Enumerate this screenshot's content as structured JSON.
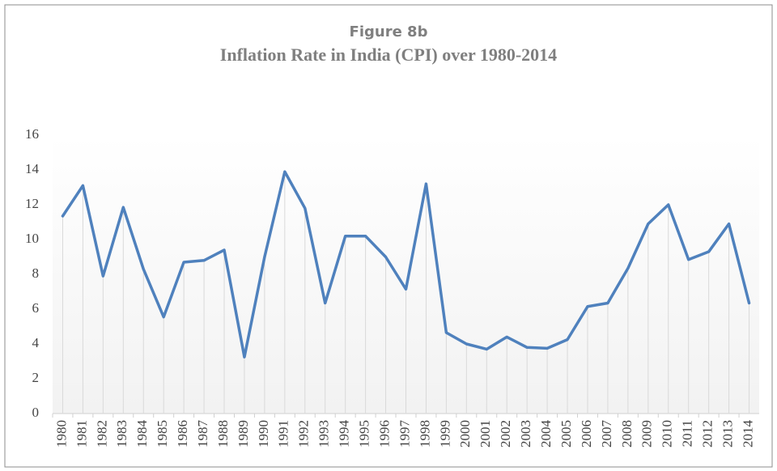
{
  "chart_data": {
    "type": "line",
    "title": "Figure 8b",
    "subtitle": "Inflation Rate in India (CPI) over 1980-2014",
    "categories": [
      "1980",
      "1981",
      "1982",
      "1983",
      "1984",
      "1985",
      "1986",
      "1987",
      "1988",
      "1989",
      "1990",
      "1991",
      "1992",
      "1993",
      "1994",
      "1995",
      "1996",
      "1997",
      "1998",
      "1999",
      "2000",
      "2001",
      "2002",
      "2003",
      "2004",
      "2005",
      "2006",
      "2007",
      "2008",
      "2009",
      "2010",
      "2011",
      "2012",
      "2013",
      "2014"
    ],
    "series": [
      {
        "name": "Inflation Rate",
        "color": "#4f81bd",
        "values": [
          11.35,
          13.1,
          7.9,
          11.85,
          8.3,
          5.55,
          8.7,
          8.8,
          9.4,
          3.25,
          9.0,
          13.9,
          11.8,
          6.35,
          10.2,
          10.2,
          9.0,
          7.15,
          13.2,
          4.65,
          4.0,
          3.7,
          4.4,
          3.8,
          3.75,
          4.25,
          6.15,
          6.35,
          8.35,
          10.9,
          12.0,
          8.85,
          9.3,
          10.9,
          6.35
        ]
      }
    ],
    "ylim": [
      0,
      16
    ],
    "yticks": [
      0,
      2,
      4,
      6,
      8,
      10,
      12,
      14,
      16
    ],
    "drop_lines": true
  }
}
